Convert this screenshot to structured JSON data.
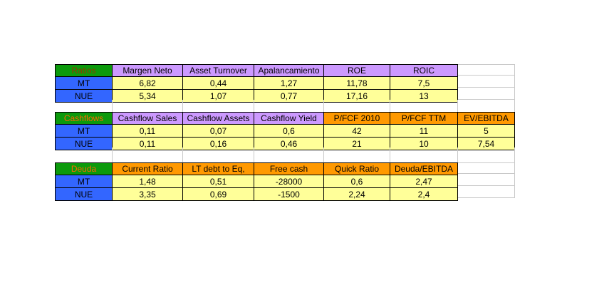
{
  "app": {
    "description": "Spreadsheet with financial ratio tables comparing MT and NUE"
  },
  "colors": {
    "canvas": "#ffffff",
    "section_label_bg": "#0c9a0c",
    "row_label_bg": "#3366ff",
    "value_bg": "#ffff99",
    "purple": "#cc99ff",
    "orange": "#ff9900",
    "grid_line": "#c9c9c9",
    "cell_border": "#000000",
    "text": "#000000",
    "ratios_label_text": "#993300",
    "cashflows_label_text": "#ff6600",
    "deuda_label_text": "#ff6600"
  },
  "sections": [
    {
      "id": "ratios",
      "label": "Ratios",
      "label_color": "#993300",
      "columns": [
        {
          "label": "Margen Neto",
          "bg": "purple"
        },
        {
          "label": "Asset Turnover",
          "bg": "purple"
        },
        {
          "label": "Apalancamiento",
          "bg": "purple"
        },
        {
          "label": "ROE",
          "bg": "purple"
        },
        {
          "label": "ROIC",
          "bg": "purple"
        }
      ],
      "rows": [
        {
          "label": "MT",
          "values": [
            "6,82",
            "0,44",
            "1,27",
            "11,78",
            "7,5"
          ]
        },
        {
          "label": "NUE",
          "values": [
            "5,34",
            "1,07",
            "0,77",
            "17,16",
            "13"
          ]
        }
      ]
    },
    {
      "id": "cashflows",
      "label": "Cashflows",
      "label_color": "#ff6600",
      "columns": [
        {
          "label": "Cashflow Sales",
          "bg": "purple"
        },
        {
          "label": "Cashflow Assets",
          "bg": "purple"
        },
        {
          "label": "Cashflow Yield",
          "bg": "purple"
        },
        {
          "label": "P/FCF 2010",
          "bg": "orange"
        },
        {
          "label": "P/FCF TTM",
          "bg": "orange"
        },
        {
          "label": "EV/EBITDA",
          "bg": "orange"
        }
      ],
      "rows": [
        {
          "label": "MT",
          "values": [
            "0,11",
            "0,07",
            "0,6",
            "42",
            "11",
            "5"
          ]
        },
        {
          "label": "NUE",
          "values": [
            "0,11",
            "0,16",
            "0,46",
            "21",
            "10",
            "7,54"
          ]
        }
      ]
    },
    {
      "id": "deuda",
      "label": "Deuda",
      "label_color": "#ff6600",
      "columns": [
        {
          "label": "Current Ratio",
          "bg": "orange"
        },
        {
          "label": "LT debt to Eq,",
          "bg": "orange"
        },
        {
          "label": "Free cash",
          "bg": "orange"
        },
        {
          "label": "Quick Ratio",
          "bg": "orange"
        },
        {
          "label": "Deuda/EBITDA",
          "bg": "orange"
        }
      ],
      "rows": [
        {
          "label": "MT",
          "values": [
            "1,48",
            "0,51",
            "-28000",
            "0,6",
            "2,47"
          ]
        },
        {
          "label": "NUE",
          "values": [
            "3,35",
            "0,69",
            "-1500",
            "2,24",
            "2,4"
          ]
        }
      ]
    }
  ]
}
